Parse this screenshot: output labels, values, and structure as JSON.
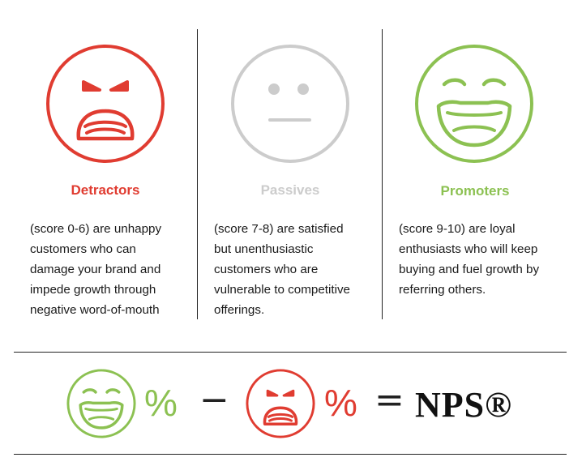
{
  "colors": {
    "detractor": "#e03c31",
    "passive": "#cccccc",
    "promoter": "#8cc152",
    "line": "#222222"
  },
  "categories": [
    {
      "title": "Detractors",
      "description": "(score 0-6) are unhappy\ncustomers who can\ndamage your brand and\nimpede growth through\nnegative word-of-mouth",
      "icon": "angry-face-icon"
    },
    {
      "title": "Passives",
      "description": "(score 7-8) are satisfied\nbut unenthusiastic\ncustomers who are\nvulnerable to competitive\nofferings.",
      "icon": "neutral-face-icon"
    },
    {
      "title": "Promoters",
      "description": "(score 9-10) are loyal\nenthusiasts who will keep\nbuying and fuel growth by\nreferring others.",
      "icon": "laughing-face-icon"
    }
  ],
  "formula": {
    "percent_1": "%",
    "minus": "−",
    "percent_2": "%",
    "equals": "=",
    "result": "NPS®"
  }
}
